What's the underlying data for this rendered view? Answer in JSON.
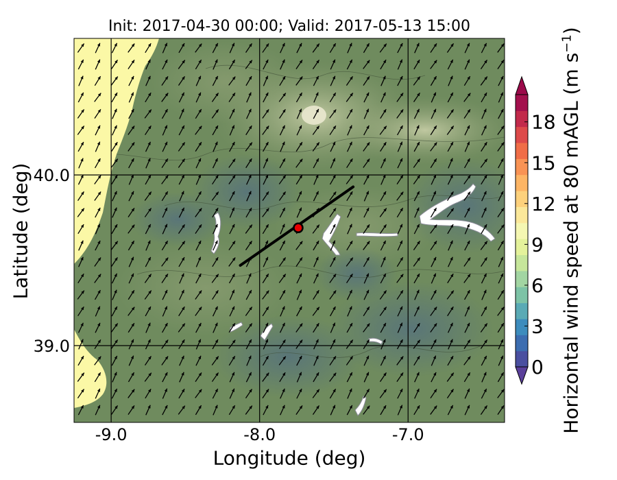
{
  "title": "Init: 2017-04-30 00:00; Valid: 2017-05-13 15:00",
  "axes": {
    "xlabel": "Longitude (deg)",
    "ylabel": "Latitude (deg)",
    "xlim": [
      -9.25,
      -6.35
    ],
    "ylim": [
      38.55,
      40.8
    ],
    "xticks": [
      {
        "value": -9.0,
        "label": "-9.0"
      },
      {
        "value": -8.0,
        "label": "-8.0"
      },
      {
        "value": -7.0,
        "label": "-7.0"
      }
    ],
    "yticks": [
      {
        "value": 40.0,
        "label": "40.0"
      },
      {
        "value": 39.0,
        "label": "39.0"
      }
    ]
  },
  "colorbar": {
    "label": "Horizontal wind speed at 80 mAGL (m s",
    "label_exponent": "−1",
    "label_suffix": ")",
    "min": 0,
    "max": 20,
    "ticks": [
      {
        "value": 0,
        "label": "0"
      },
      {
        "value": 3,
        "label": "3"
      },
      {
        "value": 6,
        "label": "6"
      },
      {
        "value": 9,
        "label": "9"
      },
      {
        "value": 12,
        "label": "12"
      },
      {
        "value": 15,
        "label": "15"
      },
      {
        "value": 18,
        "label": "18"
      }
    ],
    "colors": [
      "#4a4fa0",
      "#3c6db0",
      "#3d8cbd",
      "#5aaab5",
      "#7dc3a6",
      "#a2d5a2",
      "#c6e69b",
      "#e4f29b",
      "#f5f7b2",
      "#fbe89a",
      "#fdd17c",
      "#fdb565",
      "#f99354",
      "#f06d47",
      "#dd4a4a",
      "#c22a4b",
      "#a3104d"
    ],
    "extend": "both"
  },
  "map": {
    "background_color": "#6e8a5c",
    "coast_fill_color": "#fbf8a6",
    "marker": {
      "lon": -7.74,
      "lat": 39.69,
      "color": "#e80000"
    },
    "transect": {
      "lon1": -8.13,
      "lat1": 39.47,
      "lon2": -7.37,
      "lat2": 39.93
    },
    "wind_vector_angle_deg": 60
  }
}
